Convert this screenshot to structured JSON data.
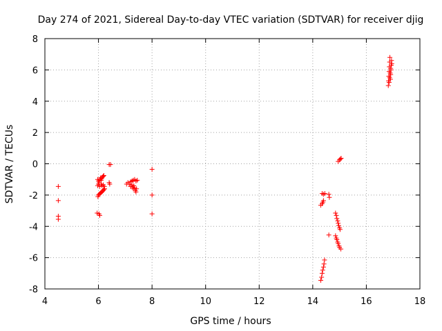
{
  "chart_data": {
    "type": "scatter",
    "title": "Day 274 of 2021, Sidereal Day-to-day VTEC variation (SDTVAR) for receiver djig",
    "xlabel": "GPS time / hours",
    "ylabel": "SDTVAR / TECUs",
    "xlim": [
      4,
      18
    ],
    "ylim": [
      -8,
      8
    ],
    "xticks": [
      4,
      6,
      8,
      10,
      12,
      14,
      16,
      18
    ],
    "yticks": [
      -8,
      -6,
      -4,
      -2,
      0,
      2,
      4,
      6,
      8
    ],
    "grid": true,
    "marker": "+",
    "color": "#ff0000",
    "series": [
      {
        "name": "SDTVAR",
        "points": [
          [
            4.5,
            -1.45
          ],
          [
            4.5,
            -2.35
          ],
          [
            4.5,
            -3.35
          ],
          [
            4.5,
            -3.55
          ],
          [
            5.95,
            -3.15
          ],
          [
            6.02,
            -3.2
          ],
          [
            6.05,
            -3.3
          ],
          [
            5.97,
            -1.0
          ],
          [
            6.0,
            -1.1
          ],
          [
            6.03,
            -1.2
          ],
          [
            6.05,
            -1.0
          ],
          [
            6.08,
            -0.9
          ],
          [
            6.1,
            -1.05
          ],
          [
            6.12,
            -0.95
          ],
          [
            6.15,
            -0.85
          ],
          [
            6.18,
            -0.8
          ],
          [
            6.2,
            -0.75
          ],
          [
            5.97,
            -1.4
          ],
          [
            6.0,
            -1.3
          ],
          [
            6.05,
            -1.45
          ],
          [
            6.1,
            -1.3
          ],
          [
            6.13,
            -1.4
          ],
          [
            6.18,
            -1.35
          ],
          [
            6.22,
            -1.45
          ],
          [
            5.98,
            -2.1
          ],
          [
            6.0,
            -2.0
          ],
          [
            6.03,
            -1.95
          ],
          [
            6.06,
            -1.9
          ],
          [
            6.09,
            -1.85
          ],
          [
            6.12,
            -1.8
          ],
          [
            6.15,
            -1.75
          ],
          [
            6.18,
            -1.7
          ],
          [
            6.2,
            -1.65
          ],
          [
            6.23,
            -1.6
          ],
          [
            6.4,
            -0.05
          ],
          [
            6.45,
            -0.05
          ],
          [
            6.4,
            -1.2
          ],
          [
            6.42,
            -1.3
          ],
          [
            7.05,
            -1.3
          ],
          [
            7.1,
            -1.2
          ],
          [
            7.15,
            -1.3
          ],
          [
            7.2,
            -1.45
          ],
          [
            7.25,
            -1.35
          ],
          [
            7.28,
            -1.5
          ],
          [
            7.3,
            -1.6
          ],
          [
            7.32,
            -1.4
          ],
          [
            7.35,
            -1.55
          ],
          [
            7.38,
            -1.7
          ],
          [
            7.4,
            -1.8
          ],
          [
            7.42,
            -1.6
          ],
          [
            7.2,
            -1.15
          ],
          [
            7.25,
            -1.1
          ],
          [
            7.3,
            -1.05
          ],
          [
            7.35,
            -1.0
          ],
          [
            7.4,
            -1.1
          ],
          [
            7.45,
            -1.05
          ],
          [
            8.0,
            -0.35
          ],
          [
            8.0,
            -2.0
          ],
          [
            8.0,
            -3.2
          ],
          [
            14.35,
            -1.9
          ],
          [
            14.4,
            -1.95
          ],
          [
            14.45,
            -1.9
          ],
          [
            14.3,
            -2.65
          ],
          [
            14.35,
            -2.55
          ],
          [
            14.38,
            -2.45
          ],
          [
            14.4,
            -2.35
          ],
          [
            14.6,
            -1.95
          ],
          [
            14.62,
            -2.15
          ],
          [
            14.3,
            -7.45
          ],
          [
            14.33,
            -7.25
          ],
          [
            14.35,
            -7.0
          ],
          [
            14.37,
            -6.8
          ],
          [
            14.4,
            -6.6
          ],
          [
            14.42,
            -6.4
          ],
          [
            14.44,
            -6.15
          ],
          [
            14.6,
            -4.55
          ],
          [
            14.85,
            -3.15
          ],
          [
            14.88,
            -3.3
          ],
          [
            14.9,
            -3.5
          ],
          [
            14.93,
            -3.65
          ],
          [
            14.95,
            -3.8
          ],
          [
            14.97,
            -3.95
          ],
          [
            15.0,
            -4.1
          ],
          [
            15.02,
            -4.2
          ],
          [
            14.85,
            -4.6
          ],
          [
            14.88,
            -4.75
          ],
          [
            14.9,
            -4.85
          ],
          [
            14.93,
            -5.0
          ],
          [
            14.95,
            -5.1
          ],
          [
            14.98,
            -5.25
          ],
          [
            15.0,
            -5.35
          ],
          [
            15.05,
            -5.45
          ],
          [
            14.95,
            0.15
          ],
          [
            15.0,
            0.25
          ],
          [
            15.03,
            0.3
          ],
          [
            15.06,
            0.35
          ],
          [
            16.82,
            5.0
          ],
          [
            16.83,
            5.3
          ],
          [
            16.84,
            5.6
          ],
          [
            16.85,
            5.9
          ],
          [
            16.86,
            6.2
          ],
          [
            16.87,
            6.5
          ],
          [
            16.88,
            6.8
          ],
          [
            16.9,
            5.4
          ],
          [
            16.91,
            5.7
          ],
          [
            16.92,
            6.0
          ],
          [
            16.93,
            6.3
          ],
          [
            16.94,
            6.6
          ],
          [
            16.85,
            5.2
          ],
          [
            16.87,
            5.5
          ],
          [
            16.89,
            5.8
          ],
          [
            16.91,
            6.1
          ],
          [
            16.95,
            6.4
          ]
        ]
      }
    ]
  }
}
